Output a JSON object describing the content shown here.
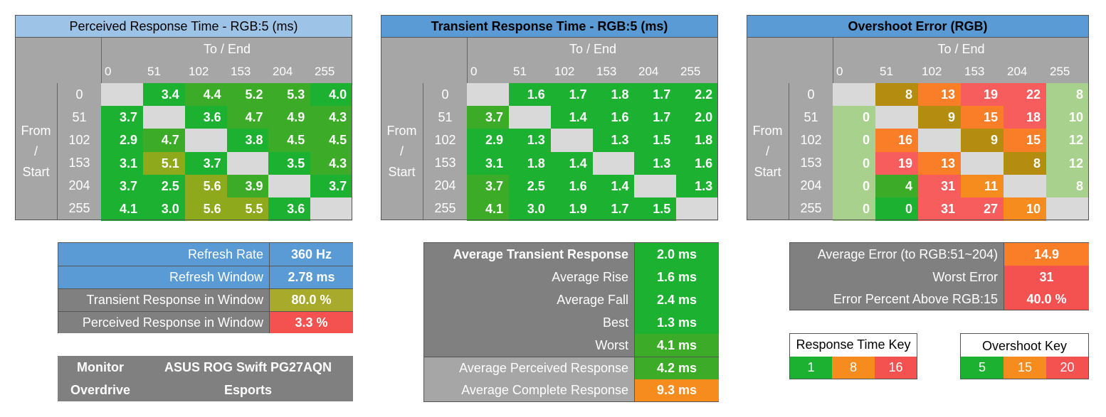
{
  "colors": {
    "green": "#1db131",
    "green2": "#3cab28",
    "olive": "#8fa91c",
    "olive2": "#a8aa2c",
    "gold": "#b48c0f",
    "orange": "#f68b1e",
    "orange2": "#fa7d28",
    "red": "#f45151",
    "red2": "#f75d5d",
    "lightgreen": "#a9d18e",
    "lightgray": "#d9d9d9",
    "blue": "#5b9bd5",
    "lightblue": "#9dc3e6"
  },
  "tables": [
    {
      "title": "Perceived Response Time - RGB:5 (ms)",
      "to_label": "To / End",
      "from_label": [
        "From",
        "/",
        "Start"
      ],
      "levels": [
        "0",
        "51",
        "102",
        "153",
        "204",
        "255"
      ],
      "cells": [
        [
          "",
          "3.4",
          "4.4",
          "5.2",
          "5.3",
          "4.0"
        ],
        [
          "3.7",
          "",
          "3.6",
          "4.7",
          "4.9",
          "4.3"
        ],
        [
          "2.9",
          "4.7",
          "",
          "3.8",
          "4.5",
          "4.5"
        ],
        [
          "3.1",
          "5.1",
          "3.7",
          "",
          "3.5",
          "4.3"
        ],
        [
          "3.7",
          "2.5",
          "5.6",
          "3.9",
          "",
          "3.7"
        ],
        [
          "4.1",
          "3.0",
          "5.6",
          "5.5",
          "3.6",
          ""
        ]
      ],
      "cell_colors": [
        [
          "lightgray",
          "green",
          "green2",
          "green2",
          "green2",
          "green"
        ],
        [
          "green",
          "lightgray",
          "green",
          "green2",
          "green2",
          "green2"
        ],
        [
          "green",
          "green2",
          "lightgray",
          "green",
          "green2",
          "green2"
        ],
        [
          "green",
          "olive",
          "green",
          "lightgray",
          "green",
          "green2"
        ],
        [
          "green",
          "green",
          "olive",
          "green2",
          "lightgray",
          "green"
        ],
        [
          "green",
          "green",
          "olive",
          "olive",
          "green",
          "lightgray"
        ]
      ]
    },
    {
      "title": "Transient Response Time - RGB:5 (ms)",
      "to_label": "To / End",
      "from_label": [
        "From",
        "/",
        "Start"
      ],
      "levels": [
        "0",
        "51",
        "102",
        "153",
        "204",
        "255"
      ],
      "cells": [
        [
          "",
          "1.6",
          "1.7",
          "1.8",
          "1.7",
          "2.2"
        ],
        [
          "3.7",
          "",
          "1.4",
          "1.6",
          "1.7",
          "2.0"
        ],
        [
          "2.9",
          "1.3",
          "",
          "1.3",
          "1.5",
          "1.8"
        ],
        [
          "3.1",
          "1.8",
          "1.4",
          "",
          "1.3",
          "1.6"
        ],
        [
          "3.7",
          "2.5",
          "1.6",
          "1.4",
          "",
          "1.3"
        ],
        [
          "4.1",
          "3.0",
          "1.9",
          "1.7",
          "1.5",
          ""
        ]
      ],
      "cell_colors": [
        [
          "lightgray",
          "green",
          "green",
          "green",
          "green",
          "green"
        ],
        [
          "green2",
          "lightgray",
          "green",
          "green",
          "green",
          "green"
        ],
        [
          "green",
          "green",
          "lightgray",
          "green",
          "green",
          "green"
        ],
        [
          "green",
          "green",
          "green",
          "lightgray",
          "green",
          "green"
        ],
        [
          "green2",
          "green",
          "green",
          "green",
          "lightgray",
          "green"
        ],
        [
          "green2",
          "green",
          "green",
          "green",
          "green",
          "lightgray"
        ]
      ]
    },
    {
      "title": "Overshoot Error (RGB)",
      "to_label": "To / End",
      "from_label": [
        "From",
        "/",
        "Start"
      ],
      "levels": [
        "0",
        "51",
        "102",
        "153",
        "204",
        "255"
      ],
      "cells": [
        [
          "",
          "8",
          "13",
          "19",
          "22",
          "8"
        ],
        [
          "0",
          "",
          "9",
          "15",
          "18",
          "10"
        ],
        [
          "0",
          "16",
          "",
          "9",
          "15",
          "12"
        ],
        [
          "0",
          "19",
          "13",
          "",
          "8",
          "12"
        ],
        [
          "0",
          "4",
          "31",
          "11",
          "",
          "8"
        ],
        [
          "0",
          "0",
          "31",
          "27",
          "10",
          ""
        ]
      ],
      "cell_colors": [
        [
          "lightgray",
          "gold",
          "orange2",
          "red2",
          "red2",
          "lightgreen"
        ],
        [
          "lightgreen",
          "lightgray",
          "gold",
          "orange2",
          "red2",
          "lightgreen"
        ],
        [
          "lightgreen",
          "orange2",
          "lightgray",
          "gold",
          "orange2",
          "lightgreen"
        ],
        [
          "lightgreen",
          "red2",
          "orange2",
          "lightgray",
          "gold",
          "lightgreen"
        ],
        [
          "lightgreen",
          "green2",
          "red2",
          "orange",
          "lightgray",
          "lightgreen"
        ],
        [
          "lightgreen",
          "green",
          "red2",
          "red2",
          "orange",
          "lightgray"
        ]
      ]
    }
  ],
  "refresh_panel": {
    "rows": [
      {
        "label": "Refresh Rate",
        "value": "360 Hz"
      },
      {
        "label": "Refresh Window",
        "value": "2.78 ms"
      },
      {
        "label": "Transient Response in Window",
        "value": "80.0 %"
      },
      {
        "label": "Perceived Response in Window",
        "value": "3.3 %"
      }
    ]
  },
  "monitor_panel": {
    "monitor_label": "Monitor",
    "monitor_value": "ASUS ROG Swift PG27AQN",
    "overdrive_label": "Overdrive",
    "overdrive_value": "Esports"
  },
  "transient_summary": {
    "rows": [
      {
        "label": "Average Transient Response",
        "value": "2.0 ms"
      },
      {
        "label": "Average Rise",
        "value": "1.6 ms"
      },
      {
        "label": "Average Fall",
        "value": "2.4 ms"
      },
      {
        "label": "Best",
        "value": "1.3 ms"
      },
      {
        "label": "Worst",
        "value": "4.1 ms"
      },
      {
        "label": "Average Perceived Response",
        "value": "4.2 ms"
      },
      {
        "label": "Average Complete Response",
        "value": "9.3 ms"
      }
    ]
  },
  "error_summary": {
    "rows": [
      {
        "label": "Average Error (to RGB:51~204)",
        "value": "14.9"
      },
      {
        "label": "Worst Error",
        "value": "31"
      },
      {
        "label": "Error Percent Above RGB:15",
        "value": "40.0 %"
      }
    ]
  },
  "response_key": {
    "title": "Response Time Key",
    "values": [
      "1",
      "8",
      "16"
    ]
  },
  "overshoot_key": {
    "title": "Overshoot Key",
    "values": [
      "5",
      "15",
      "20"
    ]
  }
}
